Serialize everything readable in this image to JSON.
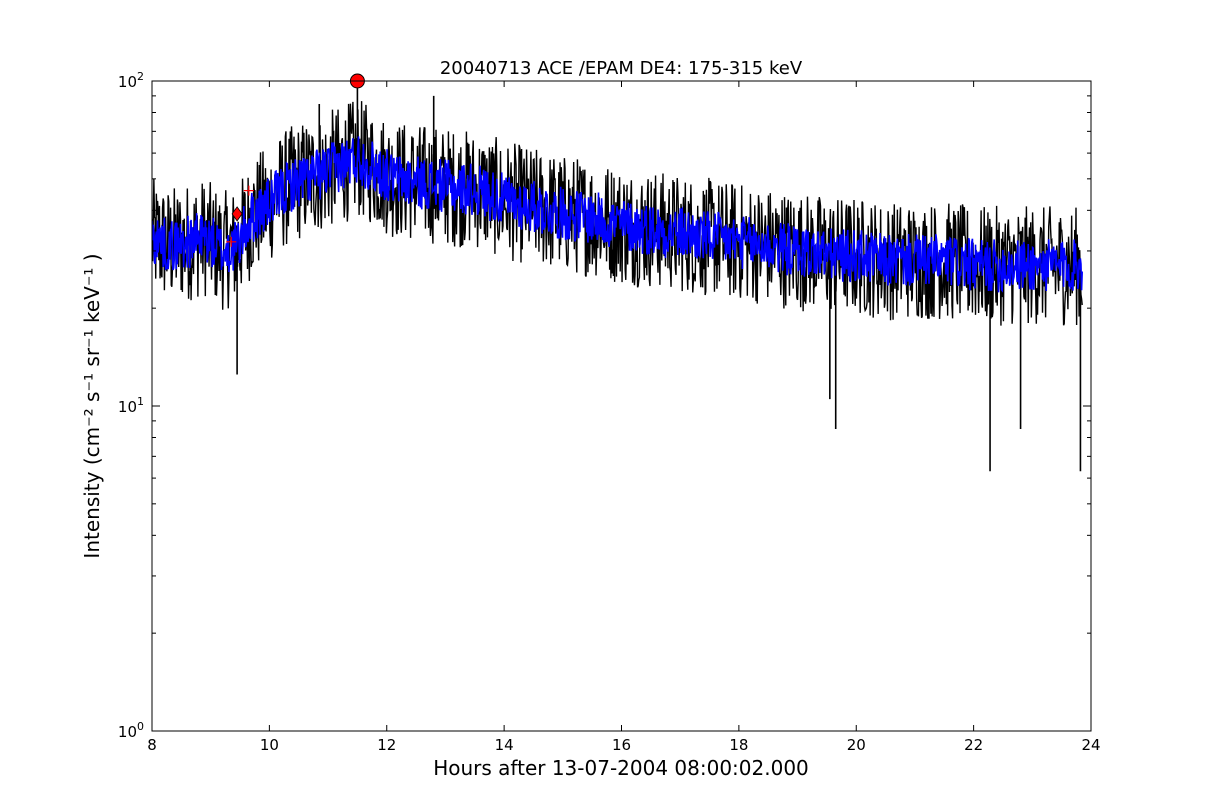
{
  "chart_data": {
    "type": "line",
    "title": "20040713 ACE /EPAM DE4: 175-315 keV",
    "xlabel": "Hours after 13-07-2004 08:00:02.000",
    "ylabel": "Intensity (cm⁻² s⁻¹ sr⁻¹ keV⁻¹ )",
    "xlim": [
      8,
      24
    ],
    "ylim": [
      1,
      100
    ],
    "yscale": "log",
    "grid": false,
    "x_ticks": [
      8,
      10,
      12,
      14,
      16,
      18,
      20,
      22,
      24
    ],
    "y_ticks": [
      {
        "value": 1,
        "label": "10",
        "exp": "0"
      },
      {
        "value": 10,
        "label": "10",
        "exp": "1"
      },
      {
        "value": 100,
        "label": "10",
        "exp": "2"
      }
    ],
    "colors": {
      "raw": "#000000",
      "smoothed": "#0000ff",
      "marker": "#ff0000"
    },
    "series": [
      {
        "role": "raw",
        "x": [
          8.0,
          8.3,
          8.6,
          8.9,
          9.2,
          9.45,
          9.7,
          10.0,
          10.3,
          10.6,
          10.9,
          11.2,
          11.5,
          11.8,
          12.1,
          12.4,
          12.8,
          13.2,
          13.6,
          14.0,
          14.5,
          15.0,
          15.5,
          16.0,
          16.5,
          17.0,
          17.5,
          18.0,
          18.5,
          19.0,
          19.7,
          20.0,
          20.5,
          21.0,
          21.5,
          22.0,
          22.3,
          22.8,
          23.3,
          23.85
        ],
        "y": [
          33,
          31,
          32,
          33,
          30,
          31,
          38,
          42,
          47,
          50,
          52,
          55,
          58,
          54,
          50,
          49,
          48,
          47,
          46,
          43,
          41,
          39,
          38,
          36,
          35,
          34,
          33,
          32,
          31,
          30,
          29,
          29,
          28,
          28,
          28,
          27,
          27,
          27,
          27,
          27
        ]
      },
      {
        "role": "smoothed",
        "x": [
          8.0,
          8.3,
          8.6,
          8.9,
          9.2,
          9.45,
          9.7,
          10.0,
          10.3,
          10.6,
          10.9,
          11.2,
          11.5,
          11.8,
          12.1,
          12.4,
          12.8,
          13.2,
          13.6,
          14.0,
          14.5,
          15.0,
          15.5,
          16.0,
          16.5,
          17.0,
          17.5,
          18.0,
          18.5,
          19.0,
          19.7,
          20.0,
          20.5,
          21.0,
          21.5,
          22.0,
          22.3,
          22.8,
          23.3,
          23.85
        ],
        "y": [
          33,
          31,
          32,
          33,
          30,
          31,
          38,
          42,
          47,
          50,
          52,
          55,
          58,
          54,
          50,
          49,
          48,
          47,
          46,
          43,
          41,
          39,
          38,
          36,
          35,
          34,
          33,
          32,
          31,
          30,
          29,
          29,
          28,
          28,
          28,
          27,
          27,
          27,
          27,
          27
        ]
      }
    ],
    "markers": [
      {
        "shape": "circle",
        "x": 11.5,
        "y": 100
      },
      {
        "shape": "diamond",
        "x": 9.45,
        "y": 39
      },
      {
        "shape": "plus",
        "x": 9.65,
        "y": 46
      },
      {
        "shape": "plus",
        "x": 9.35,
        "y": 32
      }
    ],
    "spikes": [
      {
        "x": 9.45,
        "y": 12.5
      },
      {
        "x": 11.5,
        "y": 95
      },
      {
        "x": 10.85,
        "y": 85
      },
      {
        "x": 12.8,
        "y": 90
      },
      {
        "x": 19.65,
        "y": 8.5
      },
      {
        "x": 19.55,
        "y": 10.5
      },
      {
        "x": 22.28,
        "y": 6.3
      },
      {
        "x": 22.8,
        "y": 8.5
      },
      {
        "x": 23.82,
        "y": 6.3
      }
    ]
  }
}
